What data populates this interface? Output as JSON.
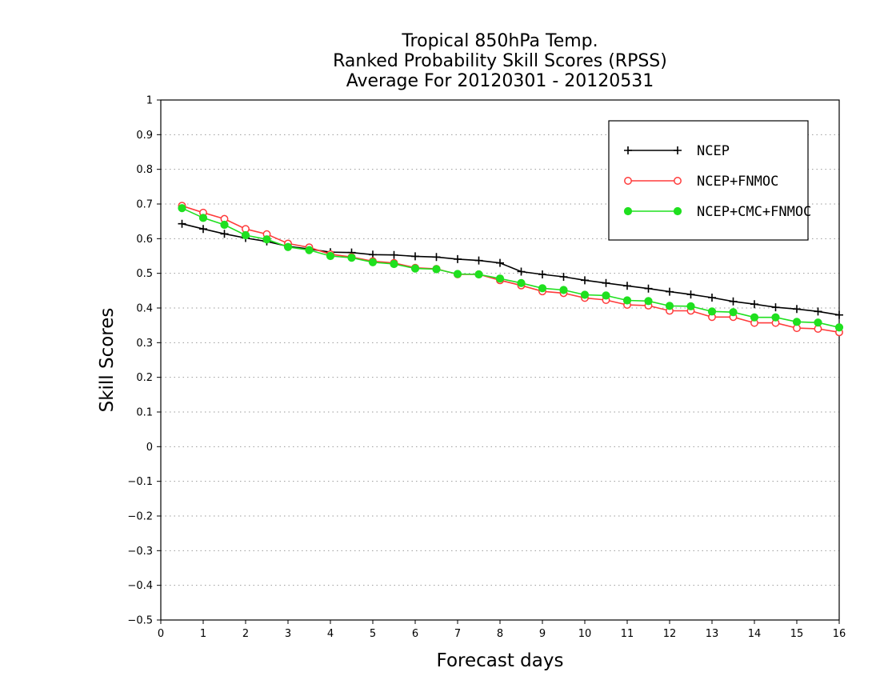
{
  "chart_data": {
    "type": "line",
    "title_lines": [
      "Tropical 850hPa Temp.",
      "Ranked Probability Skill Scores (RPSS)",
      "Average For 20120301 - 20120531"
    ],
    "xlabel": "Forecast days",
    "ylabel": "Skill Scores",
    "xlim": [
      0,
      16
    ],
    "ylim": [
      -0.5,
      1
    ],
    "xticks": [
      0,
      1,
      2,
      3,
      4,
      5,
      6,
      7,
      8,
      9,
      10,
      11,
      12,
      13,
      14,
      15,
      16
    ],
    "xtick_labels": [
      "0",
      "1",
      "2",
      "3",
      "4",
      "5",
      "6",
      "7",
      "8",
      "9",
      "10",
      "11",
      "12",
      "13",
      "14",
      "15",
      "16"
    ],
    "yticks": [
      -0.5,
      -0.4,
      -0.3,
      -0.2,
      -0.1,
      0,
      0.1,
      0.2,
      0.3,
      0.4,
      0.5,
      0.6,
      0.7,
      0.8,
      0.9,
      1
    ],
    "ytick_labels": [
      "−0.5",
      "−0.4",
      "−0.3",
      "−0.2",
      "−0.1",
      "0",
      "0.1",
      "0.2",
      "0.3",
      "0.4",
      "0.5",
      "0.6",
      "0.7",
      "0.8",
      "0.9",
      "1"
    ],
    "grid": "horizontal dotted",
    "legend_position": "top-right",
    "x": [
      0.5,
      1,
      1.5,
      2,
      2.5,
      3,
      3.5,
      4,
      4.5,
      5,
      5.5,
      6,
      6.5,
      7,
      7.5,
      8,
      8.5,
      9,
      9.5,
      10,
      10.5,
      11,
      11.5,
      12,
      12.5,
      13,
      13.5,
      14,
      14.5,
      15,
      15.5,
      16
    ],
    "series": [
      {
        "name": "NCEP",
        "color": "#000000",
        "marker": "plus",
        "values": [
          0.643,
          0.628,
          0.614,
          0.602,
          0.592,
          0.578,
          0.57,
          0.561,
          0.56,
          0.554,
          0.553,
          0.549,
          0.547,
          0.541,
          0.537,
          0.53,
          0.505,
          0.497,
          0.49,
          0.48,
          0.472,
          0.464,
          0.456,
          0.447,
          0.439,
          0.43,
          0.419,
          0.411,
          0.402,
          0.397,
          0.39,
          0.38
        ]
      },
      {
        "name": "NCEP+FNMOC",
        "color": "#ff3b3b",
        "marker": "open-circle",
        "values": [
          0.695,
          0.675,
          0.657,
          0.628,
          0.613,
          0.586,
          0.575,
          0.555,
          0.547,
          0.535,
          0.53,
          0.516,
          0.513,
          0.497,
          0.497,
          0.48,
          0.465,
          0.448,
          0.443,
          0.429,
          0.423,
          0.409,
          0.407,
          0.392,
          0.392,
          0.374,
          0.374,
          0.357,
          0.357,
          0.342,
          0.34,
          0.33
        ]
      },
      {
        "name": "NCEP+CMC+FNMOC",
        "color": "#1fe01f",
        "marker": "filled-circle",
        "values": [
          0.688,
          0.66,
          0.64,
          0.61,
          0.598,
          0.576,
          0.567,
          0.55,
          0.545,
          0.532,
          0.527,
          0.514,
          0.512,
          0.498,
          0.497,
          0.485,
          0.472,
          0.457,
          0.452,
          0.438,
          0.436,
          0.422,
          0.42,
          0.406,
          0.405,
          0.39,
          0.388,
          0.373,
          0.373,
          0.36,
          0.358,
          0.344
        ]
      }
    ]
  }
}
